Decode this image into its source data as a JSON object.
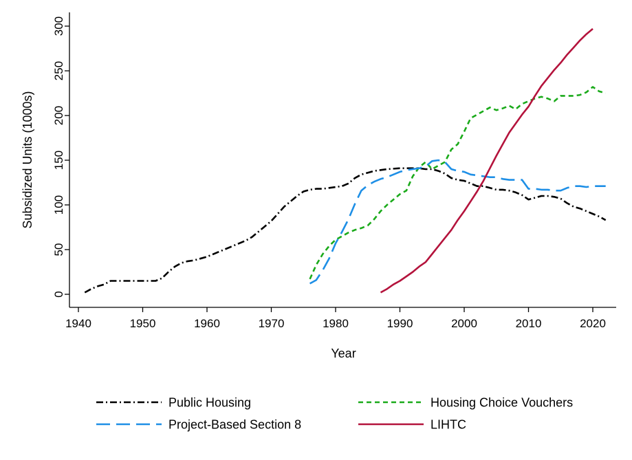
{
  "chart_data": {
    "type": "line",
    "title": "",
    "xlabel": "Year",
    "ylabel": "Subsidized Units (1000s)",
    "xlim": [
      1940,
      2023
    ],
    "ylim": [
      0,
      305
    ],
    "x_ticks": [
      1940,
      1950,
      1960,
      1970,
      1980,
      1990,
      2000,
      2010,
      2020
    ],
    "x_tick_labels": [
      "1940",
      "1950",
      "1960",
      "1970",
      "1980",
      "1990",
      "2000",
      "2010",
      "2020"
    ],
    "y_ticks": [
      0,
      50,
      100,
      150,
      200,
      250,
      300
    ],
    "y_tick_labels": [
      "0",
      "50",
      "100",
      "150",
      "200",
      "250",
      "300"
    ],
    "grid": false,
    "legend_position": "bottom",
    "series": [
      {
        "name": "Public Housing",
        "color": "#000000",
        "style": "dash-dot",
        "points": [
          [
            1941,
            2
          ],
          [
            1942,
            6
          ],
          [
            1943,
            9
          ],
          [
            1944,
            11
          ],
          [
            1945,
            15
          ],
          [
            1946,
            15
          ],
          [
            1948,
            15
          ],
          [
            1950,
            15
          ],
          [
            1952,
            15
          ],
          [
            1953,
            18
          ],
          [
            1954,
            25
          ],
          [
            1955,
            31
          ],
          [
            1956,
            35
          ],
          [
            1957,
            37
          ],
          [
            1958,
            38
          ],
          [
            1960,
            42
          ],
          [
            1962,
            48
          ],
          [
            1964,
            54
          ],
          [
            1966,
            60
          ],
          [
            1967,
            64
          ],
          [
            1968,
            70
          ],
          [
            1969,
            76
          ],
          [
            1970,
            82
          ],
          [
            1971,
            90
          ],
          [
            1972,
            98
          ],
          [
            1973,
            104
          ],
          [
            1974,
            110
          ],
          [
            1975,
            115
          ],
          [
            1976,
            117
          ],
          [
            1977,
            118
          ],
          [
            1978,
            118
          ],
          [
            1979,
            119
          ],
          [
            1980,
            120
          ],
          [
            1981,
            121
          ],
          [
            1982,
            124
          ],
          [
            1983,
            130
          ],
          [
            1984,
            134
          ],
          [
            1985,
            136
          ],
          [
            1986,
            138
          ],
          [
            1987,
            139
          ],
          [
            1988,
            140
          ],
          [
            1990,
            141
          ],
          [
            1992,
            141
          ],
          [
            1993,
            141
          ],
          [
            1994,
            140
          ],
          [
            1995,
            140
          ],
          [
            1996,
            138
          ],
          [
            1997,
            135
          ],
          [
            1998,
            130
          ],
          [
            1999,
            128
          ],
          [
            2000,
            127
          ],
          [
            2001,
            124
          ],
          [
            2002,
            121
          ],
          [
            2003,
            121
          ],
          [
            2004,
            119
          ],
          [
            2005,
            117
          ],
          [
            2006,
            117
          ],
          [
            2007,
            116
          ],
          [
            2008,
            114
          ],
          [
            2009,
            111
          ],
          [
            2010,
            106
          ],
          [
            2011,
            108
          ],
          [
            2012,
            110
          ],
          [
            2013,
            110
          ],
          [
            2014,
            109
          ],
          [
            2015,
            107
          ],
          [
            2016,
            102
          ],
          [
            2017,
            98
          ],
          [
            2018,
            96
          ],
          [
            2019,
            93
          ],
          [
            2020,
            90
          ],
          [
            2021,
            87
          ],
          [
            2022,
            83
          ]
        ]
      },
      {
        "name": "Housing Choice Vouchers",
        "color": "#1aaa1a",
        "style": "dashed",
        "points": [
          [
            1976,
            17
          ],
          [
            1977,
            33
          ],
          [
            1978,
            45
          ],
          [
            1979,
            54
          ],
          [
            1980,
            61
          ],
          [
            1981,
            65
          ],
          [
            1982,
            69
          ],
          [
            1983,
            72
          ],
          [
            1984,
            74
          ],
          [
            1985,
            77
          ],
          [
            1986,
            84
          ],
          [
            1987,
            93
          ],
          [
            1988,
            100
          ],
          [
            1989,
            106
          ],
          [
            1990,
            112
          ],
          [
            1991,
            116
          ],
          [
            1992,
            132
          ],
          [
            1993,
            142
          ],
          [
            1994,
            148
          ],
          [
            1995,
            140
          ],
          [
            1996,
            144
          ],
          [
            1997,
            148
          ],
          [
            1998,
            162
          ],
          [
            1999,
            168
          ],
          [
            2000,
            182
          ],
          [
            2001,
            197
          ],
          [
            2002,
            201
          ],
          [
            2003,
            205
          ],
          [
            2004,
            209
          ],
          [
            2005,
            206
          ],
          [
            2006,
            208
          ],
          [
            2007,
            211
          ],
          [
            2008,
            207
          ],
          [
            2009,
            213
          ],
          [
            2010,
            216
          ],
          [
            2011,
            219
          ],
          [
            2012,
            221
          ],
          [
            2013,
            219
          ],
          [
            2014,
            216
          ],
          [
            2015,
            222
          ],
          [
            2016,
            222
          ],
          [
            2017,
            222
          ],
          [
            2018,
            223
          ],
          [
            2019,
            226
          ],
          [
            2020,
            232
          ],
          [
            2021,
            227
          ],
          [
            2022,
            225
          ]
        ]
      },
      {
        "name": "Project-Based Section 8",
        "color": "#1e8fe6",
        "style": "long-dash",
        "points": [
          [
            1976,
            12
          ],
          [
            1977,
            16
          ],
          [
            1978,
            27
          ],
          [
            1979,
            40
          ],
          [
            1980,
            57
          ],
          [
            1981,
            70
          ],
          [
            1982,
            84
          ],
          [
            1983,
            101
          ],
          [
            1984,
            116
          ],
          [
            1985,
            122
          ],
          [
            1986,
            126
          ],
          [
            1987,
            129
          ],
          [
            1988,
            131
          ],
          [
            1989,
            134
          ],
          [
            1990,
            137
          ],
          [
            1991,
            139
          ],
          [
            1992,
            140
          ],
          [
            1993,
            141
          ],
          [
            1994,
            143
          ],
          [
            1995,
            149
          ],
          [
            1996,
            150
          ],
          [
            1997,
            148
          ],
          [
            1998,
            140
          ],
          [
            1999,
            138
          ],
          [
            2000,
            137
          ],
          [
            2001,
            134
          ],
          [
            2002,
            133
          ],
          [
            2003,
            132
          ],
          [
            2004,
            131
          ],
          [
            2005,
            131
          ],
          [
            2006,
            129
          ],
          [
            2007,
            128
          ],
          [
            2008,
            128
          ],
          [
            2009,
            128
          ],
          [
            2010,
            118
          ],
          [
            2011,
            118
          ],
          [
            2012,
            117
          ],
          [
            2013,
            117
          ],
          [
            2014,
            116
          ],
          [
            2015,
            116
          ],
          [
            2016,
            119
          ],
          [
            2017,
            121
          ],
          [
            2018,
            121
          ],
          [
            2019,
            120
          ],
          [
            2020,
            121
          ],
          [
            2021,
            121
          ],
          [
            2022,
            121
          ]
        ]
      },
      {
        "name": "LIHTC",
        "color": "#b4133c",
        "style": "solid",
        "points": [
          [
            1987,
            2
          ],
          [
            1988,
            6
          ],
          [
            1989,
            11
          ],
          [
            1990,
            15
          ],
          [
            1991,
            20
          ],
          [
            1992,
            25
          ],
          [
            1993,
            31
          ],
          [
            1994,
            36
          ],
          [
            1995,
            45
          ],
          [
            1996,
            54
          ],
          [
            1997,
            63
          ],
          [
            1998,
            72
          ],
          [
            1999,
            83
          ],
          [
            2000,
            93
          ],
          [
            2001,
            104
          ],
          [
            2002,
            115
          ],
          [
            2003,
            127
          ],
          [
            2004,
            141
          ],
          [
            2005,
            155
          ],
          [
            2006,
            168
          ],
          [
            2007,
            181
          ],
          [
            2008,
            191
          ],
          [
            2009,
            201
          ],
          [
            2010,
            210
          ],
          [
            2011,
            222
          ],
          [
            2012,
            233
          ],
          [
            2013,
            242
          ],
          [
            2014,
            251
          ],
          [
            2015,
            259
          ],
          [
            2016,
            268
          ],
          [
            2017,
            276
          ],
          [
            2018,
            284
          ],
          [
            2019,
            291
          ],
          [
            2020,
            297
          ]
        ]
      }
    ],
    "legend": [
      {
        "label": "Public Housing",
        "series": 0
      },
      {
        "label": "Housing Choice Vouchers",
        "series": 1
      },
      {
        "label": "Project-Based Section 8",
        "series": 2
      },
      {
        "label": "LIHTC",
        "series": 3
      }
    ]
  }
}
